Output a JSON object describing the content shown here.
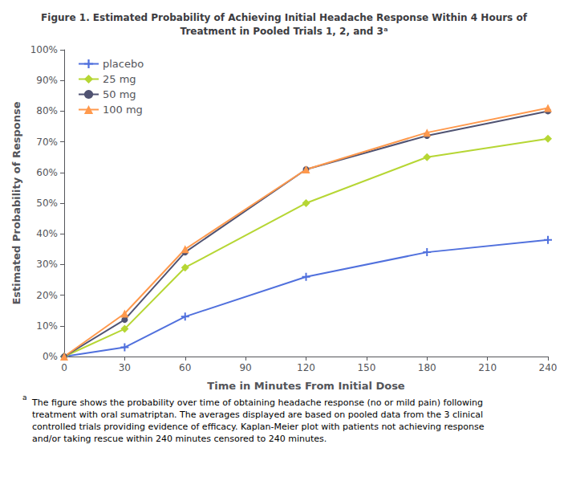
{
  "chart_data": {
    "type": "line",
    "title": "Figure 1. Estimated Probability of Achieving Initial Headache Response Within 4 Hours of\nTreatment in Pooled Trials 1, 2, and 3ᵃ",
    "xlabel": "Time in Minutes From Initial Dose",
    "ylabel": "Estimated Probability of Response",
    "annotations": [
      "a",
      "The figure shows the probability over time of obtaining headache response (no or mild pain) following\ntreatment with oral sumatriptan. The averages displayed are based on pooled data from the 3 clinical\ncontrolled trials providing evidence of efficacy. Kaplan-Meier plot with patients not achieving response\nand/or taking rescue within 240 minutes censored to 240 minutes."
    ],
    "x": [
      0,
      30,
      60,
      120,
      180,
      240
    ],
    "series": [
      {
        "name": "placebo",
        "marker": "plus",
        "values": [
          0,
          0.03,
          0.13,
          0.26,
          0.34,
          0.38
        ]
      },
      {
        "name": "25 mg",
        "marker": "diamond",
        "values": [
          0,
          0.09,
          0.29,
          0.5,
          0.65,
          0.71
        ]
      },
      {
        "name": "50 mg",
        "marker": "circle",
        "values": [
          0,
          0.12,
          0.34,
          0.61,
          0.72,
          0.8
        ]
      },
      {
        "name": "100 mg",
        "marker": "triangle",
        "values": [
          0,
          0.14,
          0.35,
          0.61,
          0.73,
          0.81
        ]
      }
    ],
    "xlim": [
      0,
      240
    ],
    "xticks": [
      0,
      30,
      60,
      90,
      120,
      150,
      180,
      210,
      240
    ],
    "ylim": [
      0,
      1.0
    ],
    "yticks": [
      {
        "value": 0.0,
        "label": "0%"
      },
      {
        "value": 0.1,
        "label": "10%"
      },
      {
        "value": 0.2,
        "label": "20%"
      },
      {
        "value": 0.3,
        "label": "30%"
      },
      {
        "value": 0.4,
        "label": "40%"
      },
      {
        "value": 0.5,
        "label": "50%"
      },
      {
        "value": 0.6,
        "label": "60%"
      },
      {
        "value": 0.7,
        "label": "70%"
      },
      {
        "value": 0.8,
        "label": "80%"
      },
      {
        "value": 0.9,
        "label": "90%"
      },
      {
        "value": 1.0,
        "label": "100%"
      }
    ],
    "grid": false,
    "legend": "upper left"
  }
}
